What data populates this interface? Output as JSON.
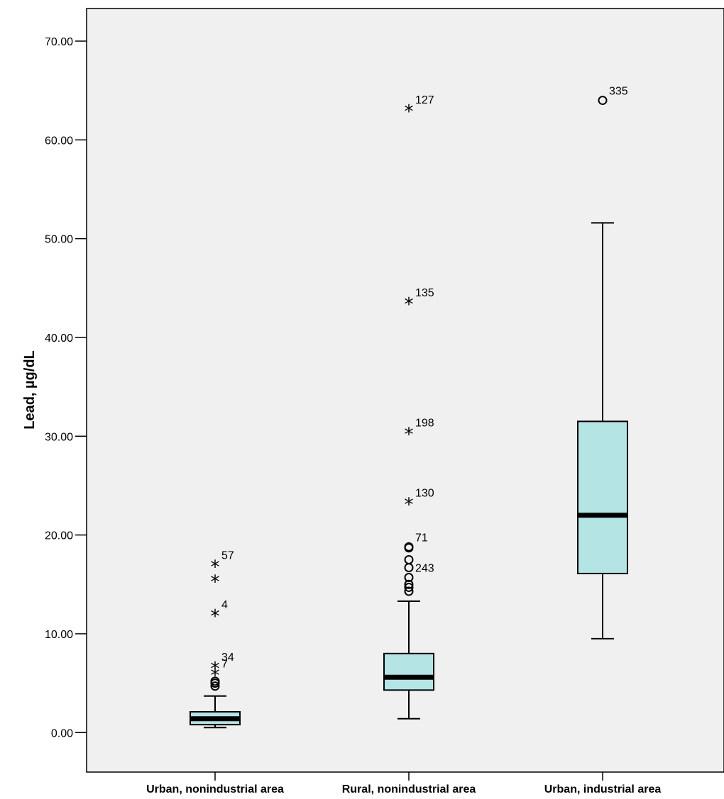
{
  "chart_data": {
    "type": "boxplot",
    "ylabel": "Lead, µg/dL",
    "xlabel": "",
    "ylim": [
      -4,
      73.3
    ],
    "yticks": [
      0,
      10,
      20,
      30,
      40,
      50,
      60,
      70
    ],
    "ytick_labels": [
      "0.00",
      "10.00",
      "20.00",
      "30.00",
      "40.00",
      "50.00",
      "60.00",
      "70.00"
    ],
    "grid": false,
    "colors": {
      "plot_bg": "#f0f0f0",
      "box_fill": "#b4e4e4",
      "line": "#000000"
    },
    "categories": [
      "Urban, nonindustrial area",
      "Rural, nonindustrial area",
      "Urban, industrial area"
    ],
    "boxes": [
      {
        "category": "Urban, nonindustrial area",
        "whisker_low": 0.5,
        "q1": 0.8,
        "median": 1.4,
        "q3": 2.1,
        "whisker_high": 3.7,
        "outliers": [
          {
            "y": 17.0,
            "marker": "star",
            "label": "57"
          },
          {
            "y": 15.5,
            "marker": "star",
            "label": ""
          },
          {
            "y": 12.0,
            "marker": "star",
            "label": "4"
          },
          {
            "y": 6.7,
            "marker": "star",
            "label": "34"
          },
          {
            "y": 6.0,
            "marker": "star",
            "label": "7"
          },
          {
            "y": 5.2,
            "marker": "circle",
            "label": ""
          },
          {
            "y": 5.0,
            "marker": "circle",
            "label": ""
          },
          {
            "y": 4.7,
            "marker": "circle",
            "label": ""
          }
        ]
      },
      {
        "category": "Rural, nonindustrial area",
        "whisker_low": 1.4,
        "q1": 4.3,
        "median": 5.6,
        "q3": 8.0,
        "whisker_high": 13.3,
        "outliers": [
          {
            "y": 63.1,
            "marker": "star",
            "label": "127"
          },
          {
            "y": 43.6,
            "marker": "star",
            "label": "135"
          },
          {
            "y": 30.4,
            "marker": "star",
            "label": "198"
          },
          {
            "y": 23.3,
            "marker": "star",
            "label": "130"
          },
          {
            "y": 18.8,
            "marker": "circle",
            "label": "71"
          },
          {
            "y": 18.7,
            "marker": "circle",
            "label": ""
          },
          {
            "y": 17.5,
            "marker": "circle",
            "label": ""
          },
          {
            "y": 16.7,
            "marker": "circle",
            "label": ""
          },
          {
            "y": 15.7,
            "marker": "circle",
            "label": "243"
          },
          {
            "y": 15.0,
            "marker": "circle",
            "label": ""
          },
          {
            "y": 14.7,
            "marker": "circle",
            "label": ""
          },
          {
            "y": 14.3,
            "marker": "circle",
            "label": ""
          }
        ]
      },
      {
        "category": "Urban, industrial area",
        "whisker_low": 9.5,
        "q1": 16.1,
        "median": 22.0,
        "q3": 31.5,
        "whisker_high": 51.6,
        "outliers": [
          {
            "y": 64.0,
            "marker": "circle",
            "label": "335"
          }
        ]
      }
    ]
  }
}
